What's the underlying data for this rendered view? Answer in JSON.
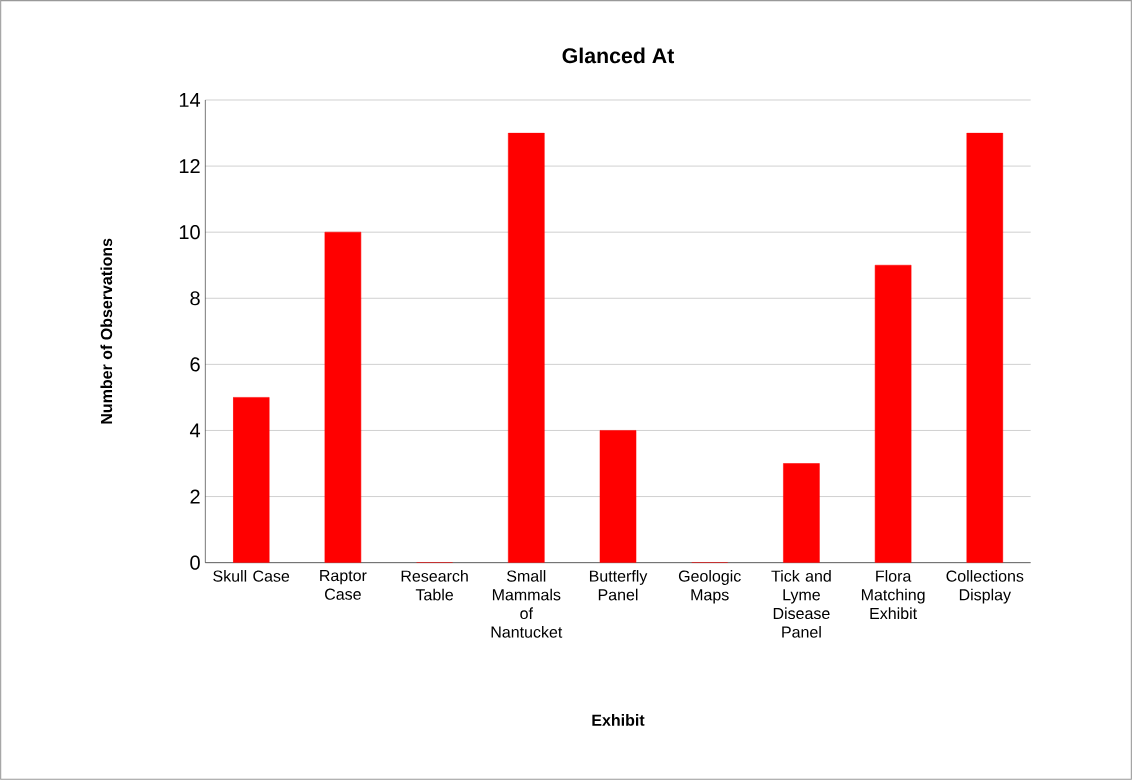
{
  "chart_data": {
    "type": "bar",
    "title": "Glanced At",
    "xlabel": "Exhibit",
    "ylabel": "Number of Observations",
    "categories": [
      "Skull Case",
      "Raptor Case",
      "Research Table",
      "Small Mammals of Nantucket",
      "Butterfly Panel",
      "Geologic Maps",
      "Tick and Lyme Disease Panel",
      "Flora Matching Exhibit",
      "Collections Display"
    ],
    "values": [
      5,
      10,
      0,
      13,
      4,
      0,
      3,
      9,
      13
    ],
    "color": "#ff0000",
    "ylim": [
      0,
      14
    ],
    "yticks": [
      0,
      2,
      4,
      6,
      8,
      10,
      12,
      14
    ],
    "grid": "y"
  }
}
